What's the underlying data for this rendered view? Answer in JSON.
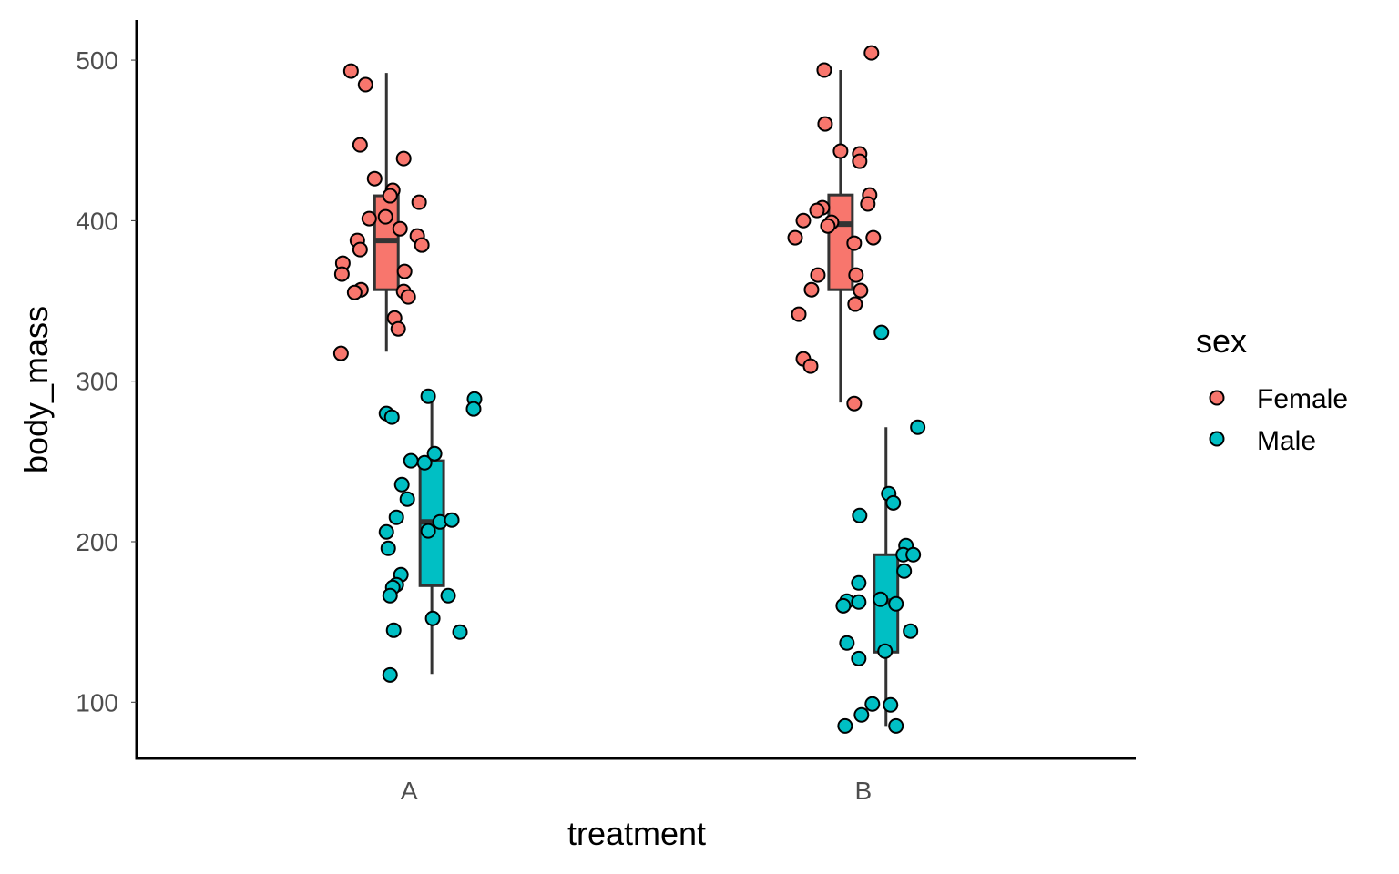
{
  "chart_data": {
    "type": "boxplot",
    "xlabel": "treatment",
    "ylabel": "body_mass",
    "categories": [
      "A",
      "B"
    ],
    "xlim": [
      0.4,
      2.6
    ],
    "ylim": [
      65,
      525
    ],
    "yticks": [
      100,
      200,
      300,
      400,
      500
    ],
    "grid": false,
    "legend": {
      "title": "sex",
      "placement": "right",
      "entries": [
        {
          "name": "Female",
          "color": "#F8766D"
        },
        {
          "name": "Male",
          "color": "#00BFC4"
        }
      ]
    },
    "boxes": [
      {
        "category": "A",
        "group": "Female",
        "whisker_low": 318.4,
        "q1": 357.0,
        "median": 387.7,
        "q3": 415.5,
        "whisker_high": 492.0
      },
      {
        "category": "A",
        "group": "Male",
        "whisker_low": 117.6,
        "q1": 172.6,
        "median": 212.3,
        "q3": 250.4,
        "whisker_high": 287.8
      },
      {
        "category": "B",
        "group": "Female",
        "whisker_low": 286.7,
        "q1": 357.0,
        "median": 397.9,
        "q3": 416.0,
        "whisker_high": 493.8
      },
      {
        "category": "B",
        "group": "Male",
        "whisker_low": 85.2,
        "q1": 131.2,
        "median": 163.0,
        "q3": 191.9,
        "whisker_high": 271.3
      }
    ],
    "points": [
      {
        "group": "Female",
        "x": [
          0.872,
          0.904,
          0.892,
          0.988,
          0.924,
          0.964,
          0.958,
          1.022,
          0.912,
          0.948,
          0.98,
          1.018,
          0.886,
          0.892,
          1.028,
          0.854,
          0.852,
          0.99,
          0.894,
          0.88,
          0.988,
          0.998,
          0.968,
          0.976,
          0.85
        ],
        "y": [
          493.2,
          484.7,
          447.2,
          438.7,
          426.2,
          418.9,
          415.5,
          411.5,
          401.3,
          402.4,
          395.0,
          390.5,
          387.7,
          382.0,
          384.8,
          373.5,
          366.7,
          368.4,
          357.0,
          355.3,
          355.9,
          352.5,
          339.4,
          332.6,
          317.3
        ]
      },
      {
        "group": "Male",
        "x": [
          1.042,
          0.95,
          0.962,
          1.144,
          1.142,
          1.004,
          1.034,
          1.056,
          0.984,
          0.996,
          0.972,
          1.068,
          1.094,
          1.042,
          0.95,
          0.954,
          0.982,
          0.972,
          0.964,
          0.958,
          1.086,
          0.966,
          1.052,
          1.112,
          0.958
        ],
        "y": [
          290.6,
          279.9,
          277.6,
          288.9,
          282.7,
          250.4,
          249.2,
          254.9,
          235.6,
          226.5,
          215.2,
          212.3,
          213.5,
          206.7,
          206.1,
          195.9,
          179.4,
          173.2,
          171.5,
          166.4,
          166.4,
          144.8,
          152.2,
          143.7,
          117.0
        ]
      },
      {
        "group": "Female",
        "x": [
          2.018,
          1.914,
          1.916,
          1.95,
          1.992,
          1.992,
          2.014,
          2.01,
          1.91,
          1.898,
          1.868,
          1.93,
          1.922,
          1.85,
          2.022,
          1.98,
          1.9,
          1.984,
          1.886,
          1.994,
          1.982,
          1.858,
          1.868,
          1.884,
          1.98
        ],
        "y": [
          504.5,
          493.8,
          460.3,
          443.3,
          441.6,
          437.0,
          416.0,
          410.4,
          408.1,
          406.4,
          400.1,
          399.0,
          396.7,
          389.4,
          389.4,
          386.0,
          366.1,
          366.1,
          357.0,
          356.5,
          348.0,
          341.7,
          313.9,
          309.4,
          286.1
        ]
      },
      {
        "group": "Male",
        "x": [
          2.04,
          2.12,
          2.056,
          2.066,
          1.992,
          2.094,
          2.088,
          2.11,
          2.09,
          1.99,
          1.964,
          1.956,
          1.99,
          2.038,
          2.072,
          2.104,
          1.964,
          1.99,
          2.048,
          2.02,
          1.996,
          2.06,
          1.96,
          2.072
        ],
        "y": [
          330.4,
          271.3,
          229.9,
          224.2,
          216.3,
          197.6,
          191.9,
          191.9,
          181.7,
          174.3,
          163.0,
          160.1,
          162.4,
          164.1,
          161.3,
          144.3,
          136.9,
          127.2,
          131.8,
          98.9,
          92.1,
          98.3,
          85.2,
          85.2
        ]
      }
    ]
  }
}
